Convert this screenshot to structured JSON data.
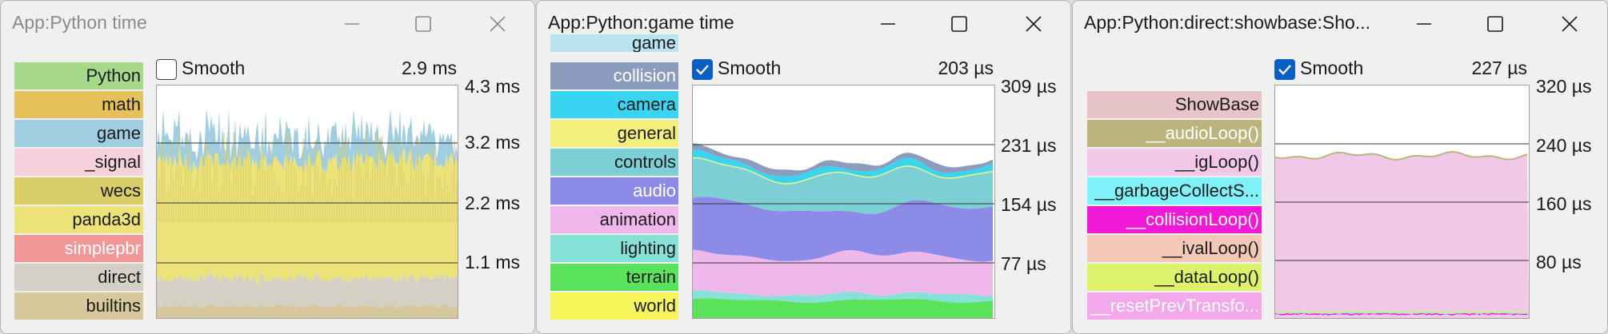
{
  "windows": [
    {
      "id": "w1",
      "title": "App:Python time",
      "smooth_label": "Smooth",
      "smooth_checked": false,
      "current_value": "2.9 ms",
      "axis_ticks": [
        "4.3 ms",
        "3.2 ms",
        "2.2 ms",
        "1.1 ms"
      ],
      "legend": [
        {
          "label": "Python",
          "color": "#a6d98a",
          "text_color": "#1a1a1a"
        },
        {
          "label": "math",
          "color": "#e6c25c",
          "text_color": "#1a1a1a"
        },
        {
          "label": "game",
          "color": "#a0cde0",
          "text_color": "#1a1a1a"
        },
        {
          "label": "_signal",
          "color": "#f6d0dc",
          "text_color": "#1a1a1a"
        },
        {
          "label": "wecs",
          "color": "#d9cd68",
          "text_color": "#1a1a1a"
        },
        {
          "label": "panda3d",
          "color": "#ebe27a",
          "text_color": "#1a1a1a"
        },
        {
          "label": "simplepbr",
          "color": "#f09898",
          "text_color": "#ffffff"
        },
        {
          "label": "direct",
          "color": "#d4d0c6",
          "text_color": "#1a1a1a"
        },
        {
          "label": "builtins",
          "color": "#d6c89a",
          "text_color": "#1a1a1a"
        }
      ]
    },
    {
      "id": "w2",
      "title": "App:Python:game time",
      "smooth_label": "Smooth",
      "smooth_checked": true,
      "current_value": "203 µs",
      "axis_ticks": [
        "309 µs",
        "231 µs",
        "154 µs",
        "77 µs"
      ],
      "legend": [
        {
          "label": "game",
          "color": "#b8e4f0",
          "text_color": "#1a1a1a"
        },
        {
          "label": "collision",
          "color": "#8c9cbe",
          "text_color": "#ffffff"
        },
        {
          "label": "camera",
          "color": "#38d4f0",
          "text_color": "#1a1a1a"
        },
        {
          "label": "general",
          "color": "#f2f07c",
          "text_color": "#1a1a1a"
        },
        {
          "label": "controls",
          "color": "#7ccfd4",
          "text_color": "#1a1a1a"
        },
        {
          "label": "audio",
          "color": "#8c8ce8",
          "text_color": "#ffffff"
        },
        {
          "label": "animation",
          "color": "#eeb8ec",
          "text_color": "#1a1a1a"
        },
        {
          "label": "lighting",
          "color": "#86e2d6",
          "text_color": "#1a1a1a"
        },
        {
          "label": "terrain",
          "color": "#5ae25c",
          "text_color": "#1a1a1a"
        },
        {
          "label": "world",
          "color": "#f6f65a",
          "text_color": "#1a1a1a"
        }
      ]
    },
    {
      "id": "w3",
      "title": "App:Python:direct:showbase:Sho...",
      "smooth_label": "Smooth",
      "smooth_checked": true,
      "current_value": "227 µs",
      "axis_ticks": [
        "320 µs",
        "240 µs",
        "160 µs",
        "80 µs"
      ],
      "legend": [
        {
          "label": "ShowBase",
          "color": "#e6c4c8",
          "text_color": "#1a1a1a"
        },
        {
          "label": "__audioLoop()",
          "color": "#bcb47c",
          "text_color": "#ffffff"
        },
        {
          "label": "__igLoop()",
          "color": "#f2c8e8",
          "text_color": "#1a1a1a"
        },
        {
          "label": "__garbageCollectS...",
          "color": "#7ef2f6",
          "text_color": "#1a1a1a"
        },
        {
          "label": "__collisionLoop()",
          "color": "#f01ad6",
          "text_color": "#ffffff"
        },
        {
          "label": "__ivalLoop()",
          "color": "#f4c8b6",
          "text_color": "#1a1a1a"
        },
        {
          "label": "__dataLoop()",
          "color": "#dcf26a",
          "text_color": "#1a1a1a"
        },
        {
          "label": "__resetPrevTransfo...",
          "color": "#f2a8ea",
          "text_color": "#ffffff"
        }
      ]
    }
  ]
}
